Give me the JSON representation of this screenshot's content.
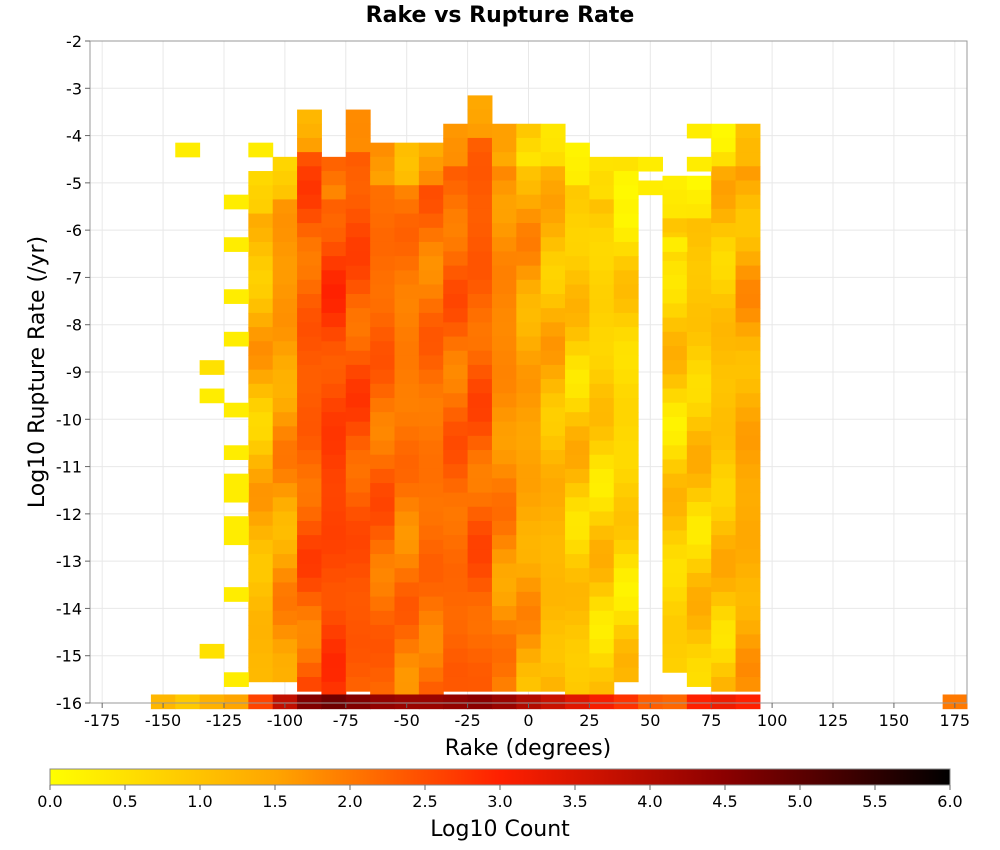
{
  "chart_data": {
    "type": "heatmap",
    "title": "Rake vs Rupture Rate",
    "xlabel": "Rake (degrees)",
    "ylabel": "Log10 Rupture Rate (/yr)",
    "colorbar_label": "Log10 Count",
    "xlim": [
      -180,
      180
    ],
    "ylim": [
      -16,
      -2
    ],
    "x_ticks": [
      -175,
      -150,
      -125,
      -100,
      -75,
      -50,
      -25,
      0,
      25,
      50,
      75,
      100,
      125,
      150,
      175
    ],
    "y_ticks": [
      -2,
      -3,
      -4,
      -5,
      -6,
      -7,
      -8,
      -9,
      -10,
      -11,
      -12,
      -13,
      -14,
      -15,
      -16
    ],
    "colorbar_ticks": [
      "0.0",
      "0.5",
      "1.0",
      "1.5",
      "2.0",
      "2.5",
      "3.0",
      "3.5",
      "4.0",
      "4.5",
      "5.0",
      "5.5",
      "6.0"
    ],
    "colorbar_range": [
      0,
      6
    ],
    "colormap": [
      "#ffff00",
      "#ffa500",
      "#ff2000",
      "#8b0000",
      "#000000"
    ],
    "grid": true,
    "x_bin_width": 10,
    "y_bin_height": 0.3,
    "cells": [
      [
        -150,
        -15.97,
        1.2
      ],
      [
        -140,
        -15.97,
        0.9
      ],
      [
        -130,
        -15.97,
        1.3
      ],
      [
        -120,
        -15.97,
        1.5
      ],
      [
        -110,
        -15.97,
        2.6
      ],
      [
        -100,
        -15.97,
        3.8
      ],
      [
        -90,
        -15.97,
        4.6
      ],
      [
        -80,
        -15.97,
        4.8
      ],
      [
        -70,
        -15.97,
        4.6
      ],
      [
        -60,
        -15.97,
        4.4
      ],
      [
        -50,
        -15.97,
        4.3
      ],
      [
        -40,
        -15.97,
        4.3
      ],
      [
        -30,
        -15.97,
        4.4
      ],
      [
        -20,
        -15.97,
        4.5
      ],
      [
        -10,
        -15.97,
        4.3
      ],
      [
        0,
        -15.97,
        4.0
      ],
      [
        10,
        -15.97,
        3.7
      ],
      [
        20,
        -15.97,
        3.4
      ],
      [
        30,
        -15.97,
        3.1
      ],
      [
        40,
        -15.97,
        2.8
      ],
      [
        50,
        -15.97,
        2.3
      ],
      [
        60,
        -15.97,
        2.2
      ],
      [
        70,
        -15.97,
        3.0
      ],
      [
        80,
        -15.97,
        3.2
      ],
      [
        90,
        -15.97,
        3.0
      ],
      [
        175,
        -15.97,
        2.0
      ],
      [
        -140,
        -4.3,
        0.3
      ],
      [
        -110,
        -4.3,
        0.3
      ],
      [
        -130,
        -8.9,
        0.5
      ],
      [
        -130,
        -9.5,
        0.3
      ],
      [
        -130,
        -14.9,
        0.5
      ],
      [
        -120,
        -5.4,
        0.3
      ],
      [
        -120,
        -6.3,
        0.3
      ],
      [
        -120,
        -7.4,
        0.3
      ],
      [
        -120,
        -8.3,
        0.3
      ],
      [
        -120,
        -9.8,
        0.3
      ],
      [
        -120,
        -10.7,
        0.3
      ],
      [
        -120,
        -11.3,
        0.3
      ],
      [
        -120,
        -11.6,
        0.3
      ],
      [
        -120,
        -12.2,
        0.3
      ],
      [
        -120,
        -12.5,
        0.3
      ],
      [
        -120,
        -13.7,
        0.3
      ],
      [
        -120,
        -15.5,
        0.3
      ],
      [
        50,
        -4.6,
        0.3
      ],
      [
        50,
        -5.1,
        0.3
      ],
      [
        60,
        -6.3,
        0.3
      ],
      [
        70,
        -3.9,
        0.3
      ],
      [
        70,
        -4.6,
        0.3
      ]
    ],
    "columns": [
      {
        "x": -110,
        "ymin": -15.5,
        "ymax": -4.9,
        "base": 1.2,
        "var": 0.6
      },
      {
        "x": -100,
        "ymin": -15.5,
        "ymax": -4.6,
        "base": 1.6,
        "var": 0.5
      },
      {
        "x": -90,
        "ymin": -15.7,
        "ymax": -3.6,
        "base": 2.3,
        "var": 0.5
      },
      {
        "x": -80,
        "ymin": -15.7,
        "ymax": -4.6,
        "base": 2.6,
        "var": 0.4
      },
      {
        "x": -70,
        "ymin": -15.7,
        "ymax": -3.6,
        "base": 2.4,
        "var": 0.4
      },
      {
        "x": -60,
        "ymin": -15.7,
        "ymax": -4.3,
        "base": 2.2,
        "var": 0.4
      },
      {
        "x": -50,
        "ymin": -15.7,
        "ymax": -4.3,
        "base": 2.0,
        "var": 0.4
      },
      {
        "x": -40,
        "ymin": -15.7,
        "ymax": -4.3,
        "base": 2.1,
        "var": 0.4
      },
      {
        "x": -30,
        "ymin": -15.7,
        "ymax": -3.9,
        "base": 2.2,
        "var": 0.4
      },
      {
        "x": -20,
        "ymin": -15.7,
        "ymax": -3.3,
        "base": 2.3,
        "var": 0.4
      },
      {
        "x": -10,
        "ymin": -15.7,
        "ymax": -3.9,
        "base": 1.8,
        "var": 0.4
      },
      {
        "x": 0,
        "ymin": -15.7,
        "ymax": -3.9,
        "base": 1.5,
        "var": 0.5
      },
      {
        "x": 10,
        "ymin": -15.7,
        "ymax": -3.9,
        "base": 1.2,
        "var": 0.5
      },
      {
        "x": 20,
        "ymin": -15.7,
        "ymax": -4.3,
        "base": 0.9,
        "var": 0.6
      },
      {
        "x": 30,
        "ymin": -15.7,
        "ymax": -4.6,
        "base": 0.8,
        "var": 0.6
      },
      {
        "x": 40,
        "ymin": -15.5,
        "ymax": -4.6,
        "base": 0.7,
        "var": 0.6
      },
      {
        "x": 60,
        "ymin": -15.3,
        "ymax": -5.0,
        "base": 0.8,
        "var": 0.6
      },
      {
        "x": 70,
        "ymin": -15.5,
        "ymax": -5.0,
        "base": 0.9,
        "var": 0.6
      },
      {
        "x": 80,
        "ymin": -15.7,
        "ymax": -3.9,
        "base": 1.0,
        "var": 0.6
      },
      {
        "x": 90,
        "ymin": -15.7,
        "ymax": -3.9,
        "base": 1.4,
        "var": 0.5
      }
    ]
  }
}
